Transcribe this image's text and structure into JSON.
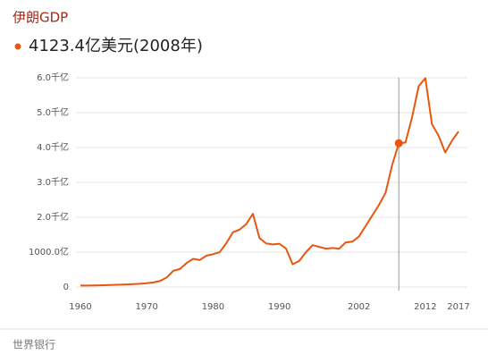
{
  "chart_data": {
    "type": "line",
    "title": "伊朗GDP",
    "highlight": {
      "x": 2008,
      "value": 4123.4,
      "label": "4123.4亿美元(2008年)"
    },
    "x": [
      1960,
      1961,
      1962,
      1963,
      1964,
      1965,
      1966,
      1967,
      1968,
      1969,
      1970,
      1971,
      1972,
      1973,
      1974,
      1975,
      1976,
      1977,
      1978,
      1979,
      1980,
      1981,
      1982,
      1983,
      1984,
      1985,
      1986,
      1987,
      1988,
      1989,
      1990,
      1991,
      1992,
      1993,
      1994,
      1995,
      1996,
      1997,
      1998,
      1999,
      2000,
      2001,
      2002,
      2003,
      2004,
      2005,
      2006,
      2007,
      2008,
      2009,
      2010,
      2011,
      2012,
      2013,
      2014,
      2015,
      2016,
      2017
    ],
    "series": [
      {
        "name": "伊朗GDP",
        "color": "#e8560f",
        "values": [
          41,
          43,
          46,
          49,
          55,
          62,
          66,
          74,
          84,
          93,
          109,
          131,
          174,
          272,
          465,
          516,
          687,
          807,
          773,
          901,
          941,
          1002,
          1256,
          1573,
          1647,
          1804,
          2099,
          1400,
          1250,
          1220,
          1240,
          1100,
          650,
          750,
          1000,
          1200,
          1150,
          1100,
          1120,
          1100,
          1280,
          1300,
          1450,
          1750,
          2050,
          2350,
          2700,
          3500,
          4123.4,
          4140,
          4870,
          5760,
          5990,
          4670,
          4340,
          3860,
          4190,
          4460
        ]
      }
    ],
    "xlim": [
      1960,
      2017
    ],
    "xticks": [
      1960,
      1970,
      1980,
      1990,
      2002,
      2012,
      2017
    ],
    "ylim": [
      0,
      6000
    ],
    "yticks": [
      0,
      {
        "value": 1000,
        "label": "1000.0亿"
      },
      {
        "value": 2000,
        "label": "2.0千亿"
      },
      {
        "value": 3000,
        "label": "3.0千亿"
      },
      {
        "value": 4000,
        "label": "4.0千亿"
      },
      {
        "value": 5000,
        "label": "5.0千亿"
      },
      {
        "value": 6000,
        "label": "6.0千亿"
      }
    ],
    "grid": true,
    "source": "世界银行"
  }
}
